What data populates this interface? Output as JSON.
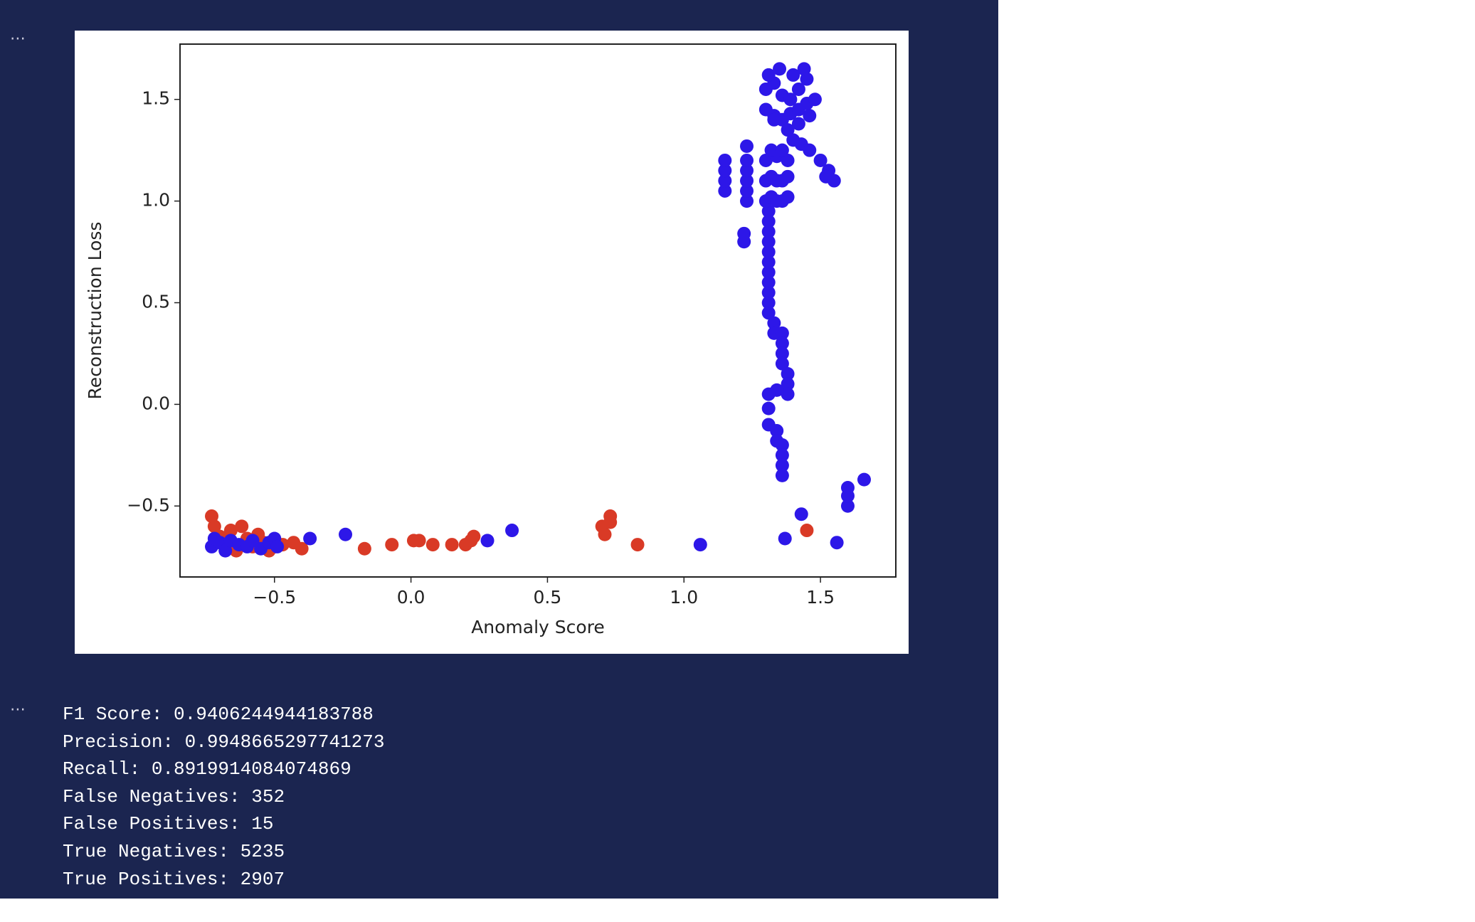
{
  "chart_data": {
    "type": "scatter",
    "xlabel": "Anomaly Score",
    "ylabel": "Reconstruction Loss",
    "xlim": [
      -0.846,
      1.776
    ],
    "ylim": [
      -0.849,
      1.772
    ],
    "xticks": [
      {
        "value": -0.5,
        "label": "−0.5"
      },
      {
        "value": 0,
        "label": "0.0"
      },
      0.5,
      {
        "value": 1,
        "label": "1.0"
      },
      1.5
    ],
    "yticks": [
      {
        "value": -0.5,
        "label": "−0.5"
      },
      {
        "value": 0,
        "label": "0.0"
      },
      0.5,
      {
        "value": 1,
        "label": "1.0"
      },
      1.5
    ],
    "series": [
      {
        "color": "#d93a26",
        "x": [
          -0.73,
          -0.72,
          -0.7,
          -0.68,
          -0.66,
          -0.64,
          -0.62,
          -0.6,
          -0.58,
          -0.56,
          -0.54,
          -0.52,
          -0.5,
          -0.47,
          -0.43,
          -0.4,
          -0.17,
          -0.07,
          0.01,
          0.03,
          0.08,
          0.15,
          0.2,
          0.22,
          0.23,
          0.7,
          0.71,
          0.73,
          0.73,
          0.83,
          1.45
        ],
        "values": [
          -0.55,
          -0.6,
          -0.65,
          -0.7,
          -0.62,
          -0.72,
          -0.6,
          -0.66,
          -0.7,
          -0.64,
          -0.68,
          -0.72,
          -0.7,
          -0.69,
          -0.68,
          -0.71,
          -0.71,
          -0.69,
          -0.67,
          -0.67,
          -0.69,
          -0.69,
          -0.69,
          -0.67,
          -0.65,
          -0.6,
          -0.64,
          -0.55,
          -0.58,
          -0.69,
          -0.62
        ]
      },
      {
        "color": "#2d17e8",
        "x": [
          -0.73,
          -0.72,
          -0.7,
          -0.68,
          -0.66,
          -0.63,
          -0.6,
          -0.58,
          -0.55,
          -0.52,
          -0.5,
          -0.49,
          -0.37,
          -0.24,
          0.28,
          0.37,
          1.06,
          1.37,
          1.43,
          1.56,
          1.6,
          1.6,
          1.6,
          1.66,
          1.15,
          1.15,
          1.15,
          1.15,
          1.23,
          1.23,
          1.23,
          1.23,
          1.23,
          1.23,
          1.22,
          1.22,
          1.31,
          1.31,
          1.31,
          1.31,
          1.31,
          1.31,
          1.31,
          1.31,
          1.31,
          1.31,
          1.31,
          1.33,
          1.33,
          1.36,
          1.36,
          1.36,
          1.36,
          1.38,
          1.38,
          1.38,
          1.34,
          1.31,
          1.31,
          1.31,
          1.34,
          1.34,
          1.36,
          1.36,
          1.36,
          1.36,
          1.3,
          1.32,
          1.34,
          1.36,
          1.38,
          1.3,
          1.32,
          1.34,
          1.36,
          1.38,
          1.3,
          1.34,
          1.38,
          1.32,
          1.36,
          1.3,
          1.33,
          1.36,
          1.39,
          1.42,
          1.45,
          1.3,
          1.33,
          1.36,
          1.39,
          1.42,
          1.45,
          1.31,
          1.35,
          1.4,
          1.44,
          1.48,
          1.33,
          1.38,
          1.42,
          1.46,
          1.4,
          1.43,
          1.46,
          1.5,
          1.53,
          1.52,
          1.55
        ],
        "values": [
          -0.7,
          -0.66,
          -0.68,
          -0.72,
          -0.67,
          -0.69,
          -0.7,
          -0.67,
          -0.71,
          -0.68,
          -0.66,
          -0.7,
          -0.66,
          -0.64,
          -0.67,
          -0.62,
          -0.69,
          -0.66,
          -0.54,
          -0.68,
          -0.5,
          -0.45,
          -0.41,
          -0.37,
          1.05,
          1.1,
          1.15,
          1.2,
          1.0,
          1.05,
          1.1,
          1.15,
          1.2,
          1.27,
          0.8,
          0.84,
          0.45,
          0.5,
          0.55,
          0.6,
          0.65,
          0.7,
          0.75,
          0.8,
          0.85,
          0.9,
          0.95,
          0.4,
          0.35,
          0.35,
          0.3,
          0.25,
          0.2,
          0.15,
          0.1,
          0.05,
          0.07,
          0.05,
          -0.02,
          -0.1,
          -0.13,
          -0.18,
          -0.2,
          -0.25,
          -0.3,
          -0.35,
          1.0,
          1.02,
          1.0,
          1.0,
          1.02,
          1.1,
          1.12,
          1.1,
          1.1,
          1.12,
          1.2,
          1.22,
          1.2,
          1.25,
          1.25,
          1.45,
          1.42,
          1.4,
          1.43,
          1.45,
          1.48,
          1.55,
          1.58,
          1.52,
          1.5,
          1.55,
          1.6,
          1.62,
          1.65,
          1.62,
          1.65,
          1.5,
          1.4,
          1.35,
          1.38,
          1.42,
          1.3,
          1.28,
          1.25,
          1.2,
          1.15,
          1.12,
          1.1
        ]
      }
    ]
  },
  "output": {
    "prompts": [
      "⋯",
      "⋯"
    ],
    "lines": [
      "F1 Score: 0.9406244944183788",
      "Precision: 0.9948665297741273",
      "Recall: 0.8919914084074869",
      "False Negatives: 352",
      "False Positives: 15",
      "True Negatives: 5235",
      "True Positives: 2907"
    ]
  }
}
